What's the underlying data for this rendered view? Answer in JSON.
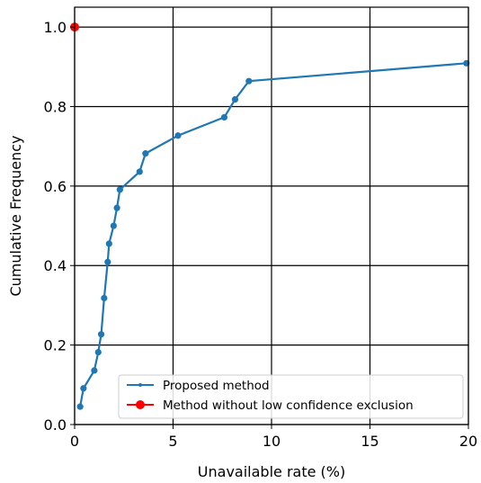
{
  "chart_data": {
    "type": "line",
    "title": "",
    "xlabel": "Unavailable rate (%)",
    "ylabel": "Cumulative Frequency",
    "xlim": [
      0,
      20
    ],
    "ylim": [
      0,
      1.05
    ],
    "xticks": [
      0,
      5,
      10,
      15,
      20
    ],
    "yticks": [
      0.0,
      0.2,
      0.4,
      0.6,
      0.8,
      1.0
    ],
    "xtick_labels": [
      "0",
      "5",
      "10",
      "15",
      "20"
    ],
    "ytick_labels": [
      "0.0",
      "0.2",
      "0.4",
      "0.6",
      "0.8",
      "1.0"
    ],
    "grid": true,
    "legend_position": "lower-right",
    "series": [
      {
        "name": "Proposed method",
        "color": "#1f77b4",
        "marker": "point",
        "x": [
          0.28,
          0.45,
          1.0,
          1.2,
          1.35,
          1.5,
          1.68,
          1.75,
          1.98,
          2.15,
          2.3,
          3.3,
          3.6,
          5.25,
          7.6,
          8.15,
          8.85,
          19.9
        ],
        "y": [
          0.045,
          0.091,
          0.136,
          0.182,
          0.227,
          0.318,
          0.409,
          0.455,
          0.5,
          0.545,
          0.591,
          0.636,
          0.682,
          0.727,
          0.773,
          0.818,
          0.864,
          0.909
        ]
      },
      {
        "name": "Method without low confidence exclusion",
        "color": "#ff0000",
        "marker": "circle",
        "x": [
          0.0
        ],
        "y": [
          1.0
        ]
      }
    ]
  }
}
